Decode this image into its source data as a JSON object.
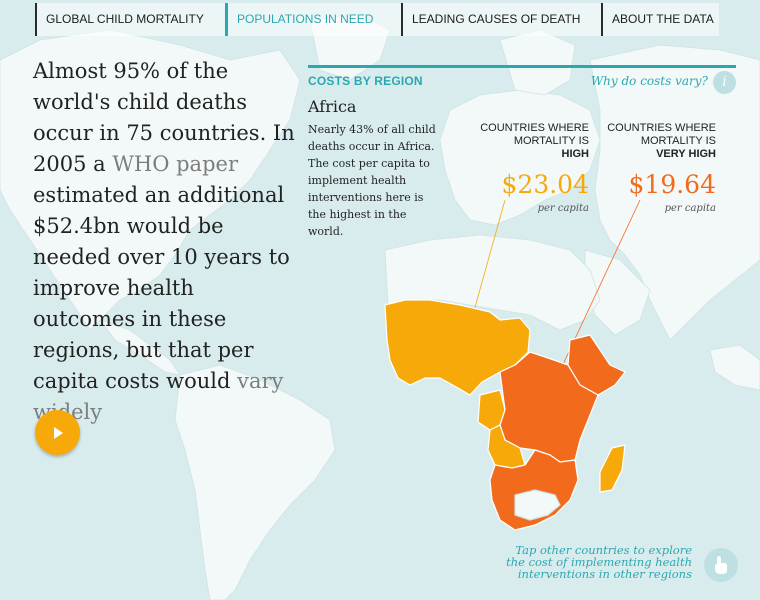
{
  "nav": {
    "tabs": [
      {
        "label": "GLOBAL CHILD MORTALITY"
      },
      {
        "label": "POPULATIONS IN NEED"
      },
      {
        "label": "LEADING CAUSES OF DEATH"
      },
      {
        "label": "ABOUT THE DATA"
      }
    ],
    "active_tab": "POPULATIONS IN NEED"
  },
  "intro": {
    "text_1": "Almost 95% of the world's child deaths occur in 75 countries. In 2005 a ",
    "link_who": "WHO paper",
    "text_2": " estimated an additional $52.4bn would be needed over 10 years to improve health outcomes in these regions, but that per capita costs would ",
    "link_vary": "vary widely"
  },
  "costs": {
    "section_title": "COSTS BY REGION",
    "why_link": "Why do costs vary?",
    "info_glyph": "i",
    "region_name": "Africa",
    "region_description": "Nearly 43% of all child deaths occur in Africa. The cost per capita to implement health interventions here is the highest in the world.",
    "high": {
      "header": "COUNTRIES WHERE MORTALITY IS",
      "level": "HIGH",
      "amount": "$23.04",
      "unit": "per capita",
      "color": "#f8a90a"
    },
    "very_high": {
      "header": "COUNTRIES WHERE MORTALITY IS",
      "level": "VERY HIGH",
      "amount": "$19.64",
      "unit": "per capita",
      "color": "#f26b1d"
    }
  },
  "hint": {
    "text": "Tap other countries to explore the cost of implementing health interventions in other regions"
  },
  "colors": {
    "accent": "#2aa8b0",
    "high": "#f8a90a",
    "very_high": "#f26b1d",
    "ocean": "#d8ecee",
    "land": "#f3f8f8"
  }
}
